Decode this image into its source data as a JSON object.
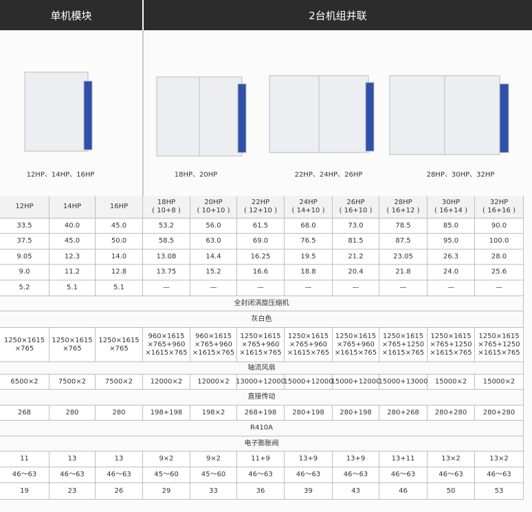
{
  "header": {
    "left": "单机模块",
    "right": "2台机组并联"
  },
  "products": [
    {
      "caption": "12HP、14HP、16HP"
    },
    {
      "caption": "18HP、20HP"
    },
    {
      "caption": "22HP、24HP、26HP"
    },
    {
      "caption": "28HP、30HP、32HP"
    }
  ],
  "table": {
    "columns": [
      [
        "12HP"
      ],
      [
        "14HP"
      ],
      [
        "16HP"
      ],
      [
        "18HP",
        "( 10+8 )"
      ],
      [
        "20HP",
        "( 10+10 )"
      ],
      [
        "22HP",
        "( 12+10 )"
      ],
      [
        "24HP",
        "( 14+10 )"
      ],
      [
        "26HP",
        "( 16+10 )"
      ],
      [
        "28HP",
        "( 16+12 )"
      ],
      [
        "30HP",
        "( 16+14 )"
      ],
      [
        "32HP",
        "( 16+16 )"
      ]
    ],
    "rows": [
      {
        "cells": [
          "33.5",
          "40.0",
          "45.0",
          "53.2",
          "56.0",
          "61.5",
          "68.0",
          "73.0",
          "78.5",
          "85.0",
          "90.0"
        ]
      },
      {
        "cells": [
          "37.5",
          "45.0",
          "50.0",
          "58.5",
          "63.0",
          "69.0",
          "76.5",
          "81.5",
          "87.5",
          "95.0",
          "100.0"
        ]
      },
      {
        "cells": [
          "9.05",
          "12.3",
          "14.0",
          "13.08",
          "14.4",
          "16.25",
          "19.5",
          "21.2",
          "23.05",
          "26.3",
          "28.0"
        ]
      },
      {
        "cells": [
          "9.0",
          "11.2",
          "12.8",
          "13.75",
          "15.2",
          "16.6",
          "18.8",
          "20.4",
          "21.8",
          "24.0",
          "25.6"
        ]
      },
      {
        "cells": [
          "5.2",
          "5.1",
          "5.1",
          "—",
          "—",
          "—",
          "—",
          "—",
          "—",
          "—",
          "—"
        ]
      },
      {
        "span": "全封闭涡旋压缩机"
      },
      {
        "span": "灰白色"
      },
      {
        "cells": [
          [
            "1250×1615",
            "×765"
          ],
          [
            "1250×1615",
            "×765"
          ],
          [
            "1250×1615",
            "×765"
          ],
          [
            "960×1615",
            "×765+960",
            "×1615×765"
          ],
          [
            "960×1615",
            "×765+960",
            "×1615×765"
          ],
          [
            "1250×1615",
            "×765+960",
            "×1615×765"
          ],
          [
            "1250×1615",
            "×765+960",
            "×1615×765"
          ],
          [
            "1250×1615",
            "×765+960",
            "×1615×765"
          ],
          [
            "1250×1615",
            "×765+1250",
            "×1615×765"
          ],
          [
            "1250×1615",
            "×765+1250",
            "×1615×765"
          ],
          [
            "1250×1615",
            "×765+1250",
            "×1615×765"
          ]
        ]
      },
      {
        "span": "轴流风扇"
      },
      {
        "cells": [
          "6500×2",
          "7500×2",
          "7500×2",
          "12000×2",
          "12000×2",
          "13000+12000",
          "15000+12000",
          "15000+12000",
          "15000+13000",
          "15000×2",
          "15000×2"
        ]
      },
      {
        "span": "直接传动"
      },
      {
        "cells": [
          "268",
          "280",
          "280",
          "198+198",
          "198×2",
          "268+198",
          "280+198",
          "280+198",
          "280+268",
          "280+280",
          "280+280"
        ]
      },
      {
        "span": "R410A"
      },
      {
        "span": "电子膨胀阀"
      },
      {
        "cells": [
          "11",
          "13",
          "13",
          "9×2",
          "9×2",
          "11+9",
          "13+9",
          "13+9",
          "13+11",
          "13×2",
          "13×2"
        ]
      },
      {
        "cells": [
          "46～63",
          "46～63",
          "46～63",
          "45～60",
          "45～60",
          "46～63",
          "46～63",
          "46～63",
          "46～63",
          "46～63",
          "46～63"
        ]
      },
      {
        "cells": [
          "19",
          "23",
          "26",
          "29",
          "33",
          "36",
          "39",
          "43",
          "46",
          "50",
          "53"
        ]
      }
    ]
  }
}
